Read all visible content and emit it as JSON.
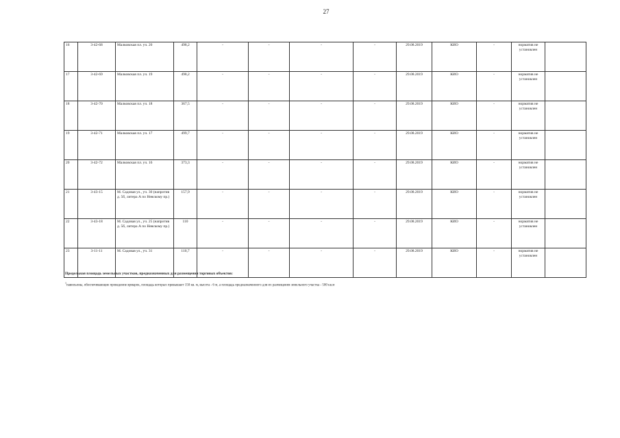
{
  "page_number": "27",
  "rows": [
    {
      "n": "16",
      "code": "3-42-68",
      "address": "Малковская пл. уч. 20",
      "area": "498,2",
      "c5": "-",
      "c6": "-",
      "c7": "-",
      "c8": "-",
      "date": "29.08.2019",
      "org": "КИО",
      "c11": "-",
      "note": "норматив не установлен"
    },
    {
      "n": "17",
      "code": "3-42-69",
      "address": "Малковская пл. уч. 19",
      "area": "498,2",
      "c5": "-",
      "c6": "-",
      "c7": "-",
      "c8": "-",
      "date": "29.08.2019",
      "org": "КИО",
      "c11": "-",
      "note": "норматив не установлен"
    },
    {
      "n": "18",
      "code": "3-42-70",
      "address": "Малковская пл. уч. 18",
      "area": "367,5",
      "c5": "-",
      "c6": "-",
      "c7": "-",
      "c8": "-",
      "date": "29.08.2019",
      "org": "КИО",
      "c11": "-",
      "note": "норматив не установлен"
    },
    {
      "n": "19",
      "code": "3-42-71",
      "address": "Малковская пл. уч. 17",
      "area": "499,7",
      "c5": "-",
      "c6": "-",
      "c7": "-",
      "c8": "-",
      "date": "29.08.2019",
      "org": "КИО",
      "c11": "-",
      "note": "норматив не установлен"
    },
    {
      "n": "20",
      "code": "3-42-72",
      "address": "Малковская пл. уч. 16",
      "area": "373,3",
      "c5": "-",
      "c6": "-",
      "c7": "-",
      "c8": "-",
      "date": "29.08.2019",
      "org": "КИО",
      "c11": "-",
      "note": "норматив не установлен"
    },
    {
      "n": "21",
      "code": "3-43-15",
      "address": "М. Садовая ул., уч. 30 (напротив д. 5б, литера А по Невскому пр.)",
      "area": "157,9",
      "c5": "-",
      "c6": "-",
      "c7": "-",
      "c8": "-",
      "date": "29.08.2019",
      "org": "КИО",
      "c11": "-",
      "note": "норматив не установлен"
    },
    {
      "n": "22",
      "code": "3-43-18",
      "address": "М. Садовая ул., уч. 25 (напротив д. 5б, литера А по Невскому пр.)",
      "area": "110",
      "c5": "-",
      "c6": "-",
      "c7": "-",
      "c8": "-",
      "date": "29.08.2019",
      "org": "КИО",
      "c11": "-",
      "note": "норматив не установлен"
    },
    {
      "n": "23",
      "code": "3-11-11",
      "address": "М. Садовая ул., уч. 31",
      "area": "110,7",
      "c5": "-",
      "c6": "-",
      "c7": "-",
      "c8": "-",
      "date": "29.08.2019",
      "org": "КИО",
      "c11": "-",
      "note": "норматив не установлен"
    }
  ],
  "footnote_title": "Предельная площадь земельных участков, предназначенных для размещения торговых объектов:",
  "footnote_mark": "1",
  "footnote_text": "павильоны, обеспечивающие проведение ярмарок, площадь которых превышает 150 кв. м, высота - 6 м, а площадь предназначенного для их размещения земельного участка - 500 кв.м"
}
